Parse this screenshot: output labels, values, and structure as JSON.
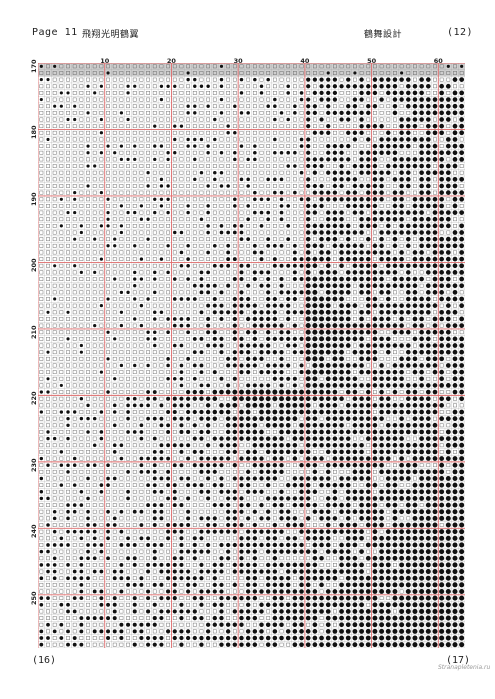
{
  "header": {
    "page_label": "Page 11",
    "title": "飛翔光明鶴翼",
    "design": "鶴舞設計",
    "page_number": "(12)"
  },
  "footer": {
    "left_page": "(16)",
    "right_page": "(17)",
    "watermark": "Stranapletenia.ru"
  },
  "chart_data": {
    "type": "table",
    "x_ticks": [
      "10",
      "20",
      "30",
      "40",
      "50",
      "60"
    ],
    "y_ticks": [
      "170",
      "180",
      "190",
      "200",
      "210",
      "220",
      "230",
      "240",
      "250"
    ],
    "columns": 64,
    "rows": 88,
    "grid": true,
    "major_grid_every": 10,
    "colors": {
      "major_grid": "#e06b6b",
      "minor_grid": "#9a9a9a",
      "header_band": "#cfcfcf",
      "symbol": "#111111"
    }
  }
}
